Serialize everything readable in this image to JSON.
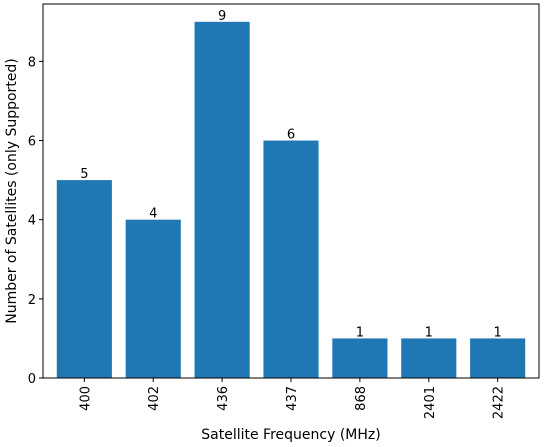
{
  "chart_data": {
    "type": "bar",
    "title": "",
    "xlabel": "Satellite Frequency (MHz)",
    "ylabel": "Number of Satellites (only Supported)",
    "categories": [
      "400",
      "402",
      "436",
      "437",
      "868",
      "2401",
      "2422"
    ],
    "values": [
      5,
      4,
      9,
      6,
      1,
      1,
      1
    ],
    "data_labels": [
      "5",
      "4",
      "9",
      "6",
      "1",
      "1",
      "1"
    ],
    "y_ticks": [
      0,
      2,
      4,
      6,
      8
    ],
    "ylim": [
      0,
      9.45
    ],
    "grid": false,
    "bar_color": "#1f77b4",
    "x_tick_rotation": "vertical"
  }
}
